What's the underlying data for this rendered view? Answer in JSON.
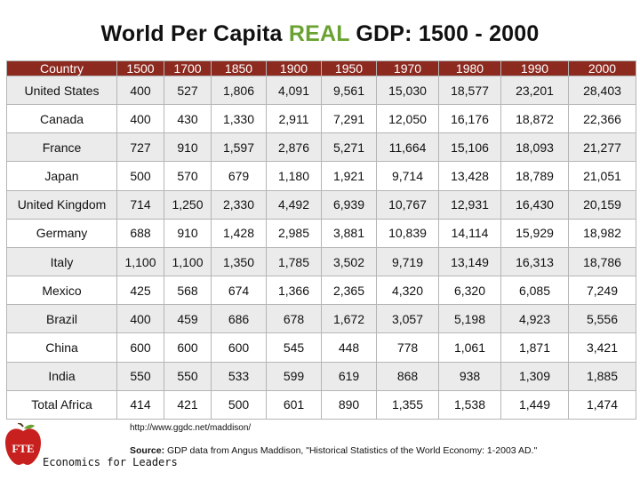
{
  "title": {
    "prefix": "World Per Capita",
    "highlight": "REAL",
    "suffix": "GDP:  1500 - 2000"
  },
  "colors": {
    "header_bg": "#8c2a20",
    "accent": "#6aa232",
    "logo_red": "#c8201e"
  },
  "table": {
    "headers": [
      "Country",
      "1500",
      "1700",
      "1850",
      "1900",
      "1950",
      "1970",
      "1980",
      "1990",
      "2000"
    ],
    "rows": [
      [
        "United States",
        "400",
        "527",
        "1,806",
        "4,091",
        "9,561",
        "15,030",
        "18,577",
        "23,201",
        "28,403"
      ],
      [
        "Canada",
        "400",
        "430",
        "1,330",
        "2,911",
        "7,291",
        "12,050",
        "16,176",
        "18,872",
        "22,366"
      ],
      [
        "France",
        "727",
        "910",
        "1,597",
        "2,876",
        "5,271",
        "11,664",
        "15,106",
        "18,093",
        "21,277"
      ],
      [
        "Japan",
        "500",
        "570",
        "679",
        "1,180",
        "1,921",
        "9,714",
        "13,428",
        "18,789",
        "21,051"
      ],
      [
        "United Kingdom",
        "714",
        "1,250",
        "2,330",
        "4,492",
        "6,939",
        "10,767",
        "12,931",
        "16,430",
        "20,159"
      ],
      [
        "Germany",
        "688",
        "910",
        "1,428",
        "2,985",
        "3,881",
        "10,839",
        "14,114",
        "15,929",
        "18,982"
      ],
      [
        "Italy",
        "1,100",
        "1,100",
        "1,350",
        "1,785",
        "3,502",
        "9,719",
        "13,149",
        "16,313",
        "18,786"
      ],
      [
        "Mexico",
        "425",
        "568",
        "674",
        "1,366",
        "2,365",
        "4,320",
        "6,320",
        "6,085",
        "7,249"
      ],
      [
        "Brazil",
        "400",
        "459",
        "686",
        "678",
        "1,672",
        "3,057",
        "5,198",
        "4,923",
        "5,556"
      ],
      [
        "China",
        "600",
        "600",
        "600",
        "545",
        "448",
        "778",
        "1,061",
        "1,871",
        "3,421"
      ],
      [
        "India",
        "550",
        "550",
        "533",
        "599",
        "619",
        "868",
        "938",
        "1,309",
        "1,885"
      ],
      [
        "Total Africa",
        "414",
        "421",
        "500",
        "601",
        "890",
        "1,355",
        "1,538",
        "1,449",
        "1,474"
      ]
    ]
  },
  "footer": {
    "url": "http://www.ggdc.net/maddison/",
    "source_label": "Source:",
    "source_text": "GDP data from Angus Maddison, \"Historical Statistics of the World Economy: 1-2003 AD.\""
  },
  "logo": {
    "mark": "FTE",
    "tagline": "Economics for Leaders"
  }
}
